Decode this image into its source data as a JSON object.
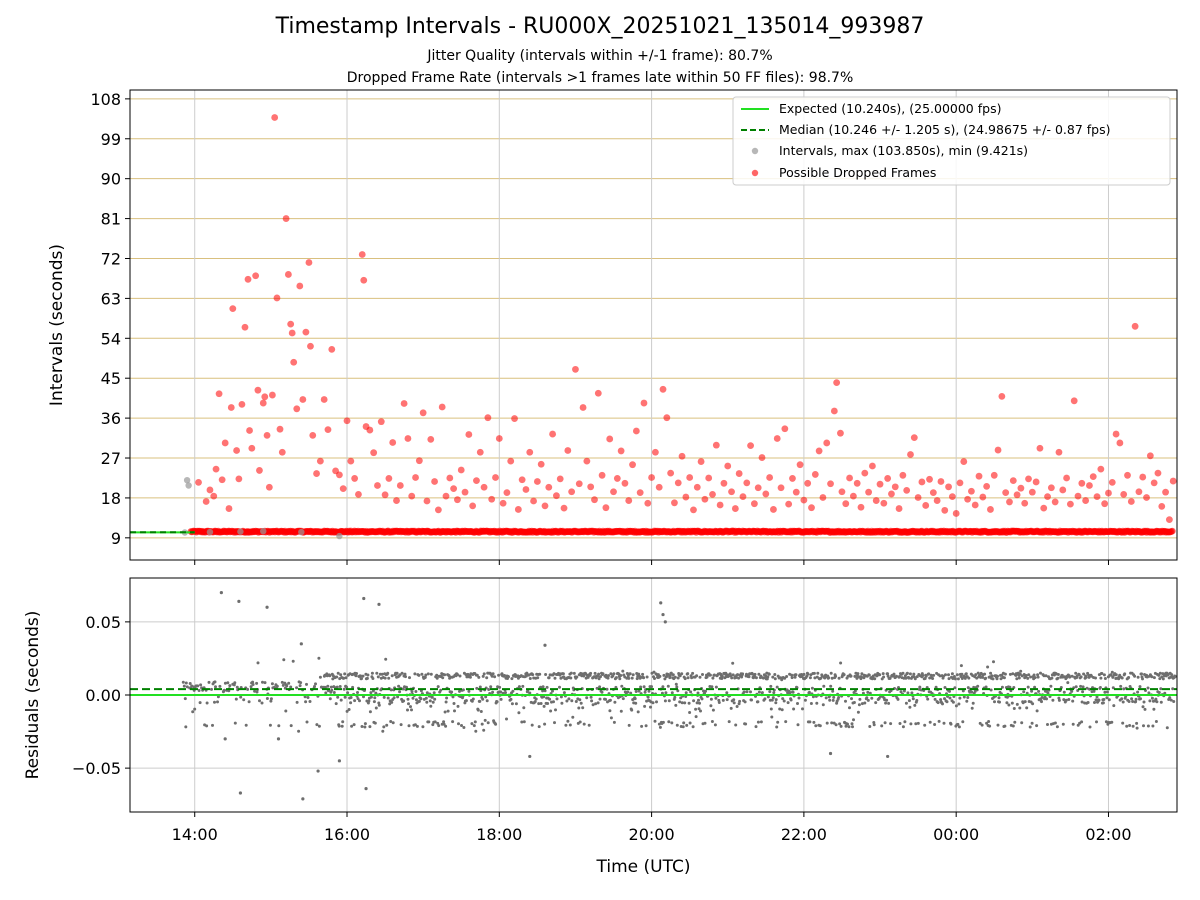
{
  "title": "Timestamp Intervals - RU000X_20251021_135014_993987",
  "subtitle_jitter": "Jitter Quality (intervals within +/-1 frame): 80.7%",
  "subtitle_dropped": "Dropped Frame Rate (intervals >1 frames late within 50 FF files): 98.7%",
  "colors": {
    "expected": "#22e022",
    "median": "#008000",
    "intervals": "#999999",
    "dropped": "#ff0000",
    "residual": "#6e6e6e",
    "grid_h": "#d9c07f",
    "grid": "#cccccc"
  },
  "chart_data": [
    {
      "type": "scatter",
      "name": "intervals-panel",
      "ylabel": "Intervals (seconds)",
      "ylim": [
        4,
        110
      ],
      "xlim_hours": [
        13.15,
        26.9
      ],
      "yticks": [
        9,
        18,
        27,
        36,
        45,
        54,
        63,
        72,
        81,
        90,
        99,
        108
      ],
      "ytick_labels": [
        "9",
        "18",
        "27",
        "36",
        "45",
        "54",
        "63",
        "72",
        "81",
        "90",
        "99",
        "108"
      ],
      "grid": true,
      "legend_placement": "top-right",
      "expected_value": 10.24,
      "median_value": 10.246,
      "legend": [
        "Expected (10.240s), (25.00000 fps)",
        "Median (10.246 +/- 1.205 s), (24.98675 +/- 0.87 fps)",
        "Intervals, max (103.850s), min (9.421s)",
        "Possible Dropped Frames"
      ],
      "gray_points": [
        [
          13.9,
          22
        ],
        [
          13.92,
          20.8
        ],
        [
          13.87,
          10.2
        ],
        [
          14.2,
          10.3
        ],
        [
          14.6,
          10.4
        ],
        [
          14.9,
          10.5
        ],
        [
          15.4,
          10.3
        ],
        [
          15.9,
          9.4
        ]
      ],
      "outliers": [
        [
          14.05,
          21.5
        ],
        [
          14.15,
          17.2
        ],
        [
          14.2,
          19.8
        ],
        [
          14.25,
          18.4
        ],
        [
          14.28,
          24.5
        ],
        [
          14.32,
          41.5
        ],
        [
          14.36,
          22.1
        ],
        [
          14.4,
          30.4
        ],
        [
          14.45,
          15.6
        ],
        [
          14.48,
          38.4
        ],
        [
          14.5,
          60.7
        ],
        [
          14.55,
          28.7
        ],
        [
          14.58,
          22.3
        ],
        [
          14.62,
          39.1
        ],
        [
          14.66,
          56.5
        ],
        [
          14.7,
          67.3
        ],
        [
          14.72,
          33.2
        ],
        [
          14.75,
          29.2
        ],
        [
          14.8,
          68.1
        ],
        [
          14.83,
          42.3
        ],
        [
          14.85,
          24.2
        ],
        [
          14.9,
          39.4
        ],
        [
          14.92,
          40.8
        ],
        [
          14.95,
          32.1
        ],
        [
          14.98,
          20.4
        ],
        [
          15.02,
          41.2
        ],
        [
          15.05,
          103.8
        ],
        [
          15.08,
          63.1
        ],
        [
          15.12,
          33.5
        ],
        [
          15.15,
          28.3
        ],
        [
          15.2,
          81.0
        ],
        [
          15.23,
          68.4
        ],
        [
          15.26,
          57.2
        ],
        [
          15.28,
          55.2
        ],
        [
          15.3,
          48.6
        ],
        [
          15.34,
          38.1
        ],
        [
          15.38,
          65.8
        ],
        [
          15.42,
          40.2
        ],
        [
          15.46,
          55.4
        ],
        [
          15.5,
          71.1
        ],
        [
          15.52,
          52.2
        ],
        [
          15.55,
          32.1
        ],
        [
          15.6,
          23.5
        ],
        [
          15.65,
          26.3
        ],
        [
          15.7,
          40.2
        ],
        [
          15.75,
          33.4
        ],
        [
          15.8,
          51.5
        ],
        [
          15.85,
          24.1
        ],
        [
          15.9,
          23.2
        ],
        [
          15.95,
          20.1
        ],
        [
          16.0,
          35.4
        ],
        [
          16.05,
          26.3
        ],
        [
          16.1,
          22.4
        ],
        [
          16.15,
          18.8
        ],
        [
          16.2,
          72.9
        ],
        [
          16.22,
          67.1
        ],
        [
          16.25,
          34.1
        ],
        [
          16.3,
          33.3
        ],
        [
          16.35,
          28.2
        ],
        [
          16.4,
          20.8
        ],
        [
          16.45,
          35.2
        ],
        [
          16.5,
          18.7
        ],
        [
          16.55,
          22.4
        ],
        [
          16.6,
          30.5
        ],
        [
          16.65,
          17.4
        ],
        [
          16.7,
          20.8
        ],
        [
          16.75,
          39.3
        ],
        [
          16.8,
          31.4
        ],
        [
          16.85,
          18.4
        ],
        [
          16.9,
          22.6
        ],
        [
          16.95,
          26.4
        ],
        [
          17.0,
          37.2
        ],
        [
          17.05,
          17.3
        ],
        [
          17.1,
          31.2
        ],
        [
          17.15,
          21.7
        ],
        [
          17.2,
          15.3
        ],
        [
          17.25,
          38.5
        ],
        [
          17.3,
          18.4
        ],
        [
          17.35,
          22.5
        ],
        [
          17.4,
          20.1
        ],
        [
          17.45,
          17.6
        ],
        [
          17.5,
          24.3
        ],
        [
          17.55,
          19.3
        ],
        [
          17.6,
          32.3
        ],
        [
          17.65,
          16.2
        ],
        [
          17.7,
          21.9
        ],
        [
          17.75,
          28.3
        ],
        [
          17.8,
          20.4
        ],
        [
          17.85,
          36.1
        ],
        [
          17.9,
          17.7
        ],
        [
          17.95,
          22.6
        ],
        [
          18.0,
          31.4
        ],
        [
          18.05,
          16.8
        ],
        [
          18.1,
          19.2
        ],
        [
          18.15,
          26.3
        ],
        [
          18.2,
          35.9
        ],
        [
          18.25,
          15.4
        ],
        [
          18.3,
          22.1
        ],
        [
          18.35,
          19.9
        ],
        [
          18.4,
          28.3
        ],
        [
          18.45,
          17.3
        ],
        [
          18.5,
          21.7
        ],
        [
          18.55,
          25.6
        ],
        [
          18.6,
          16.2
        ],
        [
          18.65,
          20.4
        ],
        [
          18.7,
          32.4
        ],
        [
          18.75,
          18.5
        ],
        [
          18.8,
          22.3
        ],
        [
          18.85,
          15.7
        ],
        [
          18.9,
          28.7
        ],
        [
          18.95,
          19.4
        ],
        [
          19.0,
          47.0
        ],
        [
          19.05,
          21.2
        ],
        [
          19.1,
          38.4
        ],
        [
          19.15,
          26.3
        ],
        [
          19.2,
          20.5
        ],
        [
          19.25,
          17.6
        ],
        [
          19.3,
          41.6
        ],
        [
          19.35,
          23.1
        ],
        [
          19.4,
          15.8
        ],
        [
          19.45,
          31.3
        ],
        [
          19.5,
          19.4
        ],
        [
          19.55,
          22.4
        ],
        [
          19.6,
          28.6
        ],
        [
          19.65,
          21.3
        ],
        [
          19.7,
          17.4
        ],
        [
          19.75,
          25.5
        ],
        [
          19.8,
          33.1
        ],
        [
          19.85,
          19.2
        ],
        [
          19.9,
          39.4
        ],
        [
          19.95,
          16.8
        ],
        [
          20.0,
          22.6
        ],
        [
          20.05,
          28.3
        ],
        [
          20.1,
          20.4
        ],
        [
          20.15,
          42.5
        ],
        [
          20.2,
          36.1
        ],
        [
          20.25,
          23.6
        ],
        [
          20.3,
          16.9
        ],
        [
          20.35,
          21.4
        ],
        [
          20.4,
          27.4
        ],
        [
          20.45,
          18.2
        ],
        [
          20.5,
          22.6
        ],
        [
          20.55,
          15.3
        ],
        [
          20.6,
          20.4
        ],
        [
          20.65,
          26.2
        ],
        [
          20.7,
          17.7
        ],
        [
          20.75,
          22.5
        ],
        [
          20.8,
          18.8
        ],
        [
          20.85,
          29.9
        ],
        [
          20.9,
          16.4
        ],
        [
          20.95,
          21.3
        ],
        [
          21.0,
          25.2
        ],
        [
          21.05,
          19.4
        ],
        [
          21.1,
          15.6
        ],
        [
          21.15,
          23.5
        ],
        [
          21.2,
          18.3
        ],
        [
          21.25,
          21.4
        ],
        [
          21.3,
          29.8
        ],
        [
          21.35,
          16.7
        ],
        [
          21.4,
          20.3
        ],
        [
          21.45,
          27.1
        ],
        [
          21.5,
          18.9
        ],
        [
          21.55,
          22.6
        ],
        [
          21.6,
          15.4
        ],
        [
          21.65,
          31.4
        ],
        [
          21.7,
          20.3
        ],
        [
          21.75,
          33.6
        ],
        [
          21.8,
          16.6
        ],
        [
          21.85,
          22.4
        ],
        [
          21.9,
          19.3
        ],
        [
          21.95,
          25.5
        ],
        [
          22.0,
          17.5
        ],
        [
          22.05,
          21.3
        ],
        [
          22.1,
          15.8
        ],
        [
          22.15,
          23.3
        ],
        [
          22.2,
          28.6
        ],
        [
          22.25,
          18.1
        ],
        [
          22.3,
          30.4
        ],
        [
          22.35,
          21.2
        ],
        [
          22.4,
          37.6
        ],
        [
          22.43,
          44.0
        ],
        [
          22.48,
          32.6
        ],
        [
          22.5,
          19.4
        ],
        [
          22.55,
          16.7
        ],
        [
          22.6,
          22.5
        ],
        [
          22.65,
          18.4
        ],
        [
          22.7,
          21.3
        ],
        [
          22.75,
          15.9
        ],
        [
          22.8,
          23.6
        ],
        [
          22.85,
          19.3
        ],
        [
          22.9,
          25.2
        ],
        [
          22.95,
          17.4
        ],
        [
          23.0,
          21.1
        ],
        [
          23.05,
          16.8
        ],
        [
          23.1,
          22.4
        ],
        [
          23.15,
          18.9
        ],
        [
          23.2,
          20.5
        ],
        [
          23.25,
          15.6
        ],
        [
          23.3,
          23.1
        ],
        [
          23.35,
          19.7
        ],
        [
          23.4,
          27.8
        ],
        [
          23.45,
          31.6
        ],
        [
          23.5,
          18.1
        ],
        [
          23.55,
          21.6
        ],
        [
          23.6,
          16.3
        ],
        [
          23.65,
          22.2
        ],
        [
          23.7,
          19.2
        ],
        [
          23.75,
          17.4
        ],
        [
          23.8,
          21.7
        ],
        [
          23.85,
          15.2
        ],
        [
          23.9,
          20.5
        ],
        [
          23.95,
          18.3
        ],
        [
          24.0,
          14.5
        ],
        [
          24.05,
          21.4
        ],
        [
          24.1,
          26.2
        ],
        [
          24.15,
          17.7
        ],
        [
          24.2,
          19.5
        ],
        [
          24.25,
          16.4
        ],
        [
          24.3,
          22.9
        ],
        [
          24.35,
          18.2
        ],
        [
          24.4,
          20.6
        ],
        [
          24.45,
          15.4
        ],
        [
          24.5,
          23.1
        ],
        [
          24.55,
          28.8
        ],
        [
          24.6,
          40.9
        ],
        [
          24.65,
          19.2
        ],
        [
          24.7,
          17.1
        ],
        [
          24.75,
          21.9
        ],
        [
          24.8,
          18.7
        ],
        [
          24.85,
          20.2
        ],
        [
          24.9,
          16.8
        ],
        [
          24.95,
          22.3
        ],
        [
          25.0,
          19.3
        ],
        [
          25.05,
          21.6
        ],
        [
          25.1,
          29.2
        ],
        [
          25.15,
          15.7
        ],
        [
          25.2,
          18.3
        ],
        [
          25.25,
          20.3
        ],
        [
          25.3,
          17.1
        ],
        [
          25.35,
          28.3
        ],
        [
          25.4,
          19.8
        ],
        [
          25.45,
          22.5
        ],
        [
          25.5,
          16.6
        ],
        [
          25.55,
          39.9
        ],
        [
          25.6,
          18.4
        ],
        [
          25.65,
          21.3
        ],
        [
          25.7,
          17.4
        ],
        [
          25.75,
          20.8
        ],
        [
          25.8,
          22.8
        ],
        [
          25.85,
          18.3
        ],
        [
          25.9,
          24.5
        ],
        [
          25.95,
          16.7
        ],
        [
          26.0,
          19.1
        ],
        [
          26.05,
          21.5
        ],
        [
          26.1,
          32.4
        ],
        [
          26.15,
          30.4
        ],
        [
          26.2,
          18.8
        ],
        [
          26.25,
          23.1
        ],
        [
          26.3,
          17.2
        ],
        [
          26.35,
          56.7
        ],
        [
          26.4,
          19.4
        ],
        [
          26.45,
          22.7
        ],
        [
          26.5,
          18.1
        ],
        [
          26.55,
          27.5
        ],
        [
          26.6,
          21.4
        ],
        [
          26.65,
          23.6
        ],
        [
          26.7,
          16.1
        ],
        [
          26.75,
          19.3
        ],
        [
          26.8,
          13.1
        ],
        [
          26.85,
          21.8
        ]
      ]
    },
    {
      "type": "scatter",
      "name": "residuals-panel",
      "xlabel": "Time (UTC)",
      "ylabel": "Residuals (seconds)",
      "ylim": [
        -0.08,
        0.08
      ],
      "yticks": [
        -0.05,
        0.0,
        0.05
      ],
      "ytick_labels": [
        "−0.05",
        "0.00",
        "0.05"
      ],
      "xlim_hours": [
        13.15,
        26.9
      ],
      "xticks_hours": [
        14,
        16,
        18,
        20,
        22,
        24,
        26
      ],
      "xtick_labels": [
        "14:00",
        "16:00",
        "18:00",
        "20:00",
        "22:00",
        "00:00",
        "02:00"
      ],
      "grid": true,
      "expected_value": 0.0,
      "median_value": 0.004,
      "outliers": [
        [
          14.35,
          0.07
        ],
        [
          14.58,
          0.064
        ],
        [
          14.6,
          -0.067
        ],
        [
          14.95,
          0.06
        ],
        [
          15.42,
          -0.071
        ],
        [
          15.62,
          -0.052
        ],
        [
          15.9,
          -0.045
        ],
        [
          16.22,
          0.066
        ],
        [
          16.25,
          -0.064
        ],
        [
          16.42,
          0.062
        ],
        [
          20.12,
          0.063
        ],
        [
          20.15,
          0.055
        ],
        [
          20.18,
          0.05
        ],
        [
          22.35,
          -0.04
        ],
        [
          23.1,
          -0.042
        ],
        [
          18.6,
          0.034
        ],
        [
          18.4,
          -0.042
        ],
        [
          15.4,
          0.035
        ],
        [
          15.1,
          -0.03
        ],
        [
          14.4,
          -0.03
        ]
      ]
    }
  ]
}
